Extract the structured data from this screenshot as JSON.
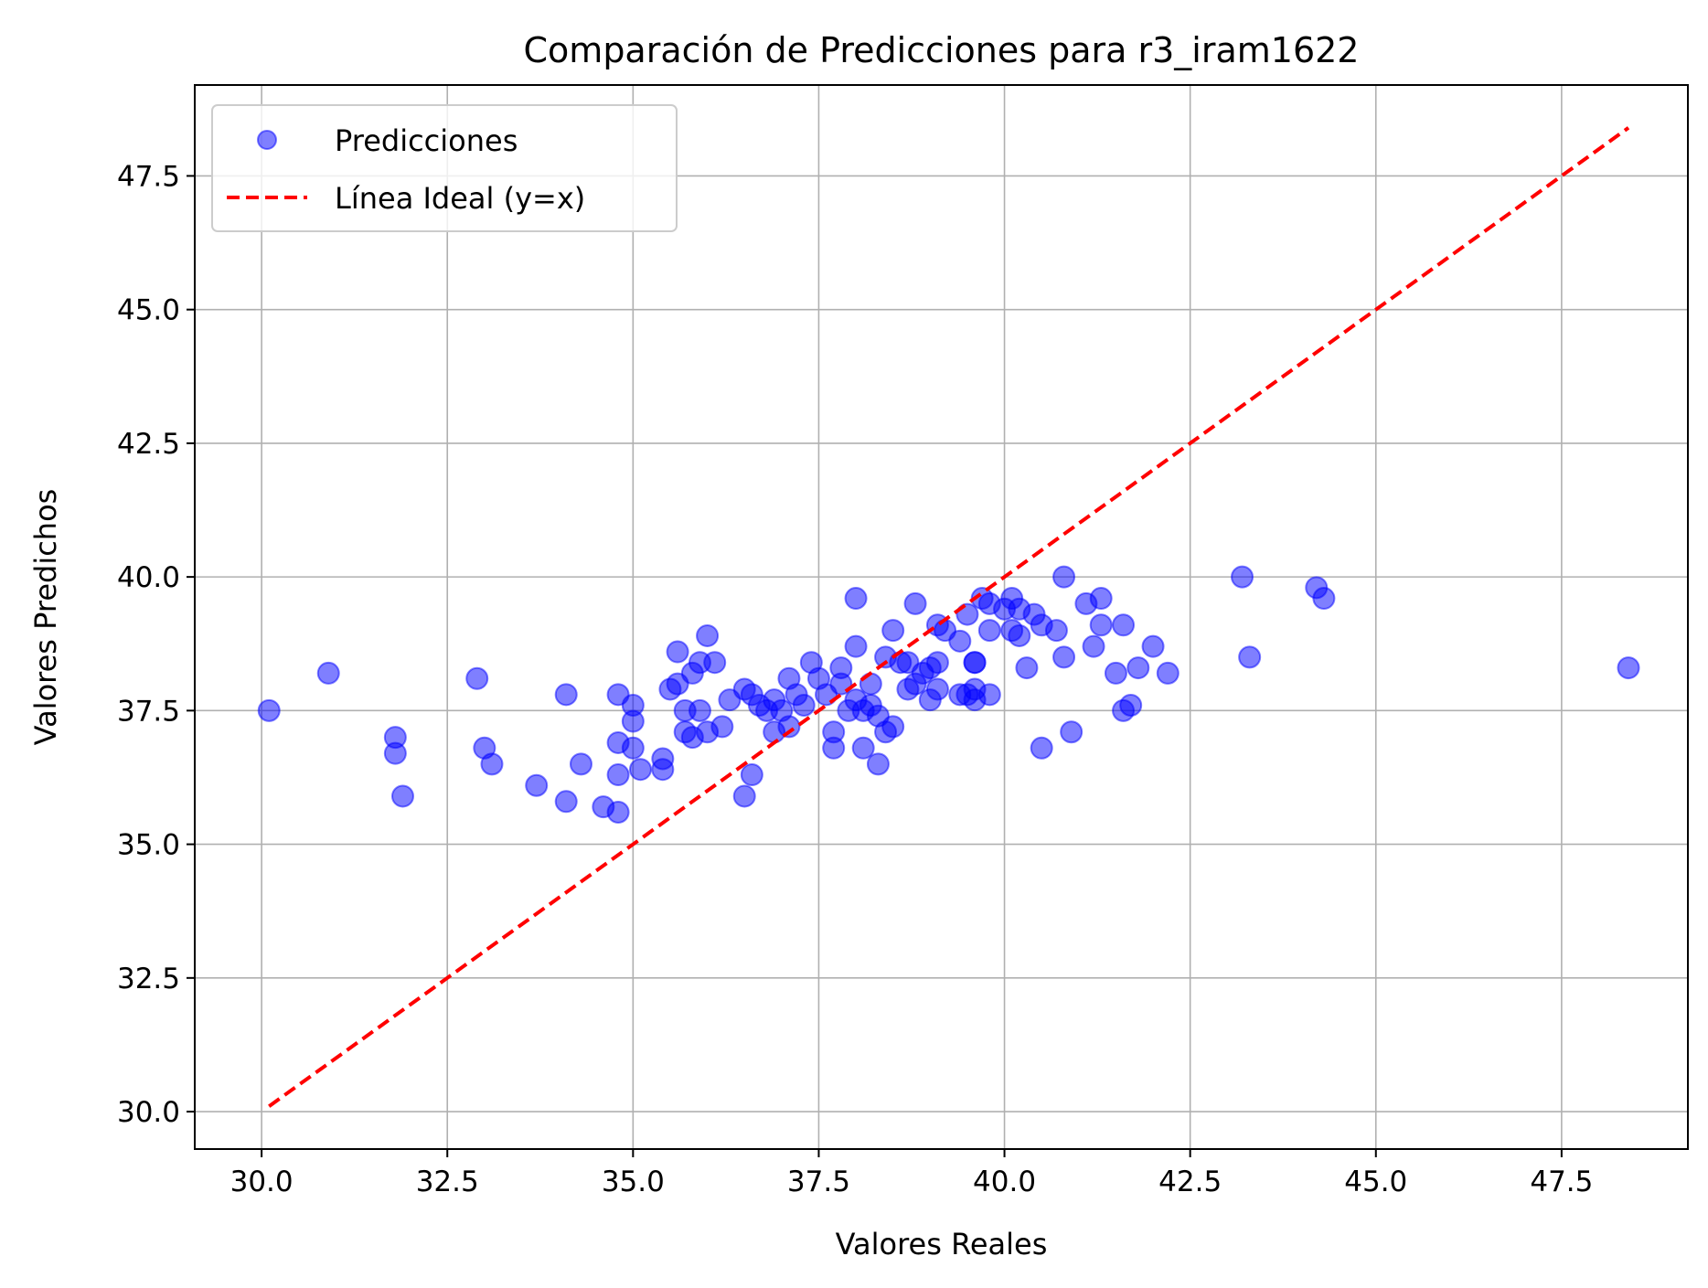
{
  "chart_data": {
    "type": "scatter",
    "title": "Comparación de Predicciones para r3_iram1622",
    "xlabel": "Valores Reales",
    "ylabel": "Valores Predichos",
    "xlim": [
      29.1,
      49.2
    ],
    "ylim": [
      29.3,
      49.2
    ],
    "xticks": [
      30.0,
      32.5,
      35.0,
      37.5,
      40.0,
      42.5,
      45.0,
      47.5
    ],
    "yticks": [
      30.0,
      32.5,
      35.0,
      37.5,
      40.0,
      42.5,
      45.0,
      47.5
    ],
    "grid": true,
    "legend_position": "top-left",
    "series": [
      {
        "name": "Predicciones",
        "kind": "scatter",
        "color": "#0000ff",
        "opacity": 0.5,
        "points": [
          [
            30.1,
            37.5
          ],
          [
            30.9,
            38.2
          ],
          [
            31.8,
            37.0
          ],
          [
            31.8,
            36.7
          ],
          [
            31.9,
            35.9
          ],
          [
            32.9,
            38.1
          ],
          [
            33.0,
            36.8
          ],
          [
            33.1,
            36.5
          ],
          [
            33.7,
            36.1
          ],
          [
            34.1,
            37.8
          ],
          [
            34.1,
            35.8
          ],
          [
            34.3,
            36.5
          ],
          [
            34.6,
            35.7
          ],
          [
            34.8,
            35.6
          ],
          [
            34.8,
            37.8
          ],
          [
            34.8,
            36.9
          ],
          [
            34.8,
            36.3
          ],
          [
            35.0,
            37.6
          ],
          [
            35.0,
            37.3
          ],
          [
            35.0,
            36.8
          ],
          [
            35.1,
            36.4
          ],
          [
            35.4,
            36.6
          ],
          [
            35.4,
            36.4
          ],
          [
            35.5,
            37.9
          ],
          [
            35.6,
            38.6
          ],
          [
            35.6,
            38.0
          ],
          [
            35.7,
            37.5
          ],
          [
            35.7,
            37.1
          ],
          [
            35.8,
            37.0
          ],
          [
            35.8,
            38.2
          ],
          [
            35.9,
            38.4
          ],
          [
            35.9,
            37.5
          ],
          [
            36.0,
            38.9
          ],
          [
            36.0,
            37.1
          ],
          [
            36.1,
            38.4
          ],
          [
            36.2,
            37.2
          ],
          [
            36.3,
            37.7
          ],
          [
            36.5,
            37.9
          ],
          [
            36.5,
            35.9
          ],
          [
            36.6,
            37.8
          ],
          [
            36.6,
            36.3
          ],
          [
            36.7,
            37.6
          ],
          [
            36.8,
            37.5
          ],
          [
            36.9,
            37.7
          ],
          [
            36.9,
            37.1
          ],
          [
            37.0,
            37.5
          ],
          [
            37.1,
            38.1
          ],
          [
            37.1,
            37.2
          ],
          [
            37.2,
            37.8
          ],
          [
            37.3,
            37.6
          ],
          [
            37.4,
            38.4
          ],
          [
            37.5,
            38.1
          ],
          [
            37.6,
            37.8
          ],
          [
            37.7,
            37.1
          ],
          [
            37.7,
            36.8
          ],
          [
            37.8,
            38.3
          ],
          [
            37.8,
            38.0
          ],
          [
            37.9,
            37.5
          ],
          [
            38.0,
            39.6
          ],
          [
            38.0,
            38.7
          ],
          [
            38.0,
            37.7
          ],
          [
            38.1,
            37.5
          ],
          [
            38.1,
            36.8
          ],
          [
            38.2,
            38.0
          ],
          [
            38.2,
            37.6
          ],
          [
            38.3,
            37.4
          ],
          [
            38.3,
            36.5
          ],
          [
            38.4,
            38.5
          ],
          [
            38.4,
            37.1
          ],
          [
            38.5,
            39.0
          ],
          [
            38.5,
            37.2
          ],
          [
            38.6,
            38.4
          ],
          [
            38.7,
            38.4
          ],
          [
            38.7,
            37.9
          ],
          [
            38.8,
            39.5
          ],
          [
            38.8,
            38.0
          ],
          [
            38.9,
            38.2
          ],
          [
            39.0,
            38.3
          ],
          [
            39.0,
            37.7
          ],
          [
            39.1,
            39.1
          ],
          [
            39.1,
            38.4
          ],
          [
            39.1,
            37.9
          ],
          [
            39.2,
            39.0
          ],
          [
            39.4,
            38.8
          ],
          [
            39.4,
            37.8
          ],
          [
            39.5,
            39.3
          ],
          [
            39.5,
            37.8
          ],
          [
            39.6,
            38.4
          ],
          [
            39.6,
            38.4
          ],
          [
            39.6,
            37.9
          ],
          [
            39.6,
            37.7
          ],
          [
            39.7,
            39.6
          ],
          [
            39.8,
            39.5
          ],
          [
            39.8,
            39.0
          ],
          [
            39.8,
            37.8
          ],
          [
            40.0,
            39.4
          ],
          [
            40.1,
            39.6
          ],
          [
            40.1,
            39.0
          ],
          [
            40.2,
            39.4
          ],
          [
            40.2,
            38.9
          ],
          [
            40.3,
            38.3
          ],
          [
            40.4,
            39.3
          ],
          [
            40.5,
            39.1
          ],
          [
            40.5,
            36.8
          ],
          [
            40.7,
            39.0
          ],
          [
            40.8,
            40.0
          ],
          [
            40.8,
            38.5
          ],
          [
            40.9,
            37.1
          ],
          [
            41.1,
            39.5
          ],
          [
            41.2,
            38.7
          ],
          [
            41.3,
            39.6
          ],
          [
            41.3,
            39.1
          ],
          [
            41.5,
            38.2
          ],
          [
            41.6,
            39.1
          ],
          [
            41.6,
            37.5
          ],
          [
            41.7,
            37.6
          ],
          [
            41.8,
            38.3
          ],
          [
            42.0,
            38.7
          ],
          [
            42.2,
            38.2
          ],
          [
            43.2,
            40.0
          ],
          [
            43.3,
            38.5
          ],
          [
            44.2,
            39.8
          ],
          [
            44.3,
            39.6
          ],
          [
            48.4,
            38.3
          ]
        ]
      },
      {
        "name": "Línea Ideal (y=x)",
        "kind": "line",
        "style": "dashed",
        "color": "#ff0000",
        "x": [
          30.1,
          48.4
        ],
        "y": [
          30.1,
          48.4
        ]
      }
    ]
  }
}
